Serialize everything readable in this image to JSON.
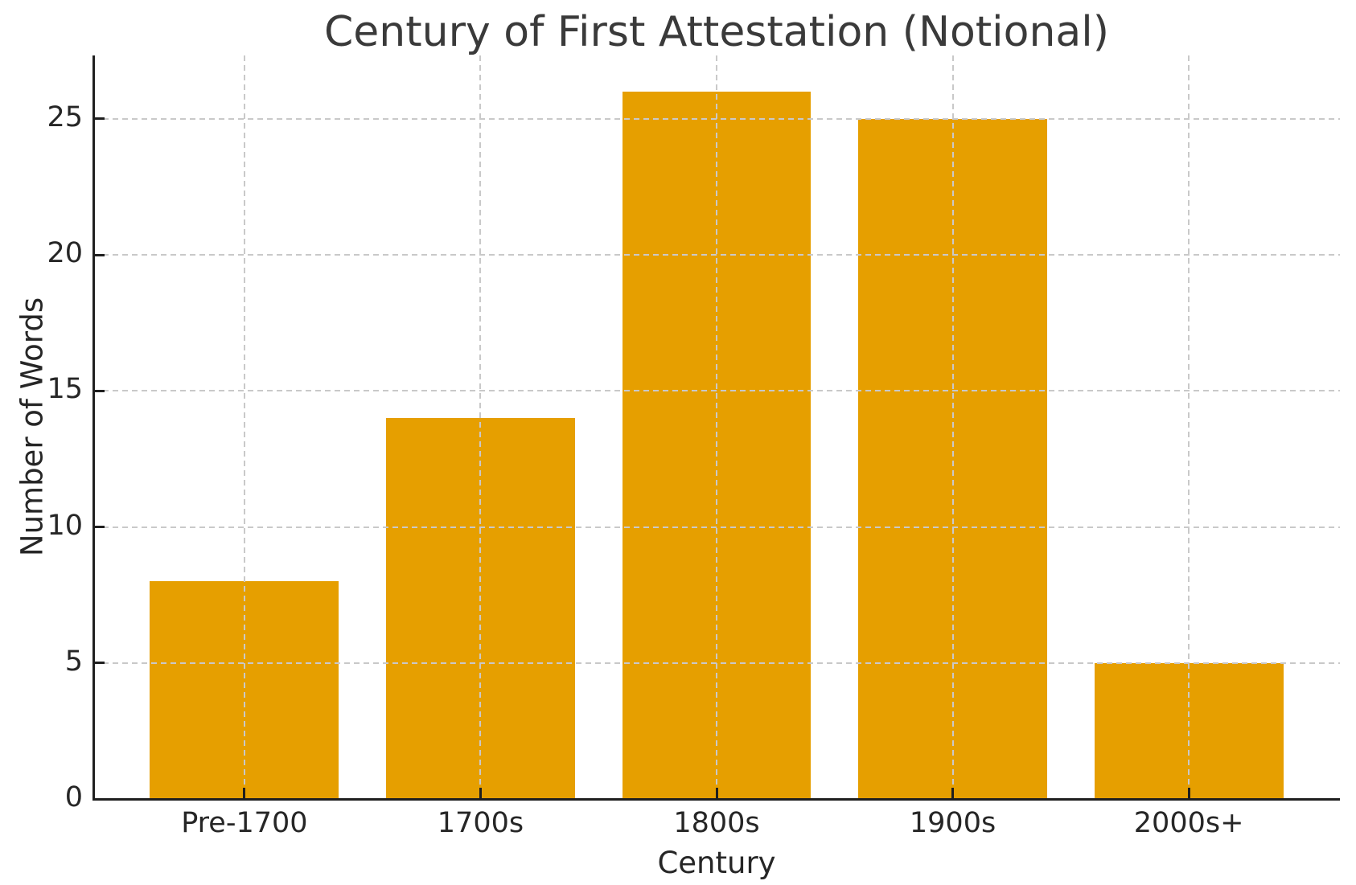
{
  "chart_data": {
    "type": "bar",
    "title": "Century of First Attestation (Notional)",
    "xlabel": "Century",
    "ylabel": "Number of Words",
    "categories": [
      "Pre-1700",
      "1700s",
      "1800s",
      "1900s",
      "2000s+"
    ],
    "values": [
      8,
      14,
      26,
      25,
      5
    ],
    "ylim": [
      0,
      27.33
    ],
    "yticks": [
      0,
      5,
      10,
      15,
      20,
      25
    ],
    "grid": "dashed, drawn over bars",
    "legend": "none",
    "bar_color": "#E69F00",
    "grid_color": "#c9c9c9",
    "axis_color": "#1f1f1f",
    "text_color": "#262626",
    "title_color": "#3a3a3a",
    "background_color": "#ffffff"
  }
}
